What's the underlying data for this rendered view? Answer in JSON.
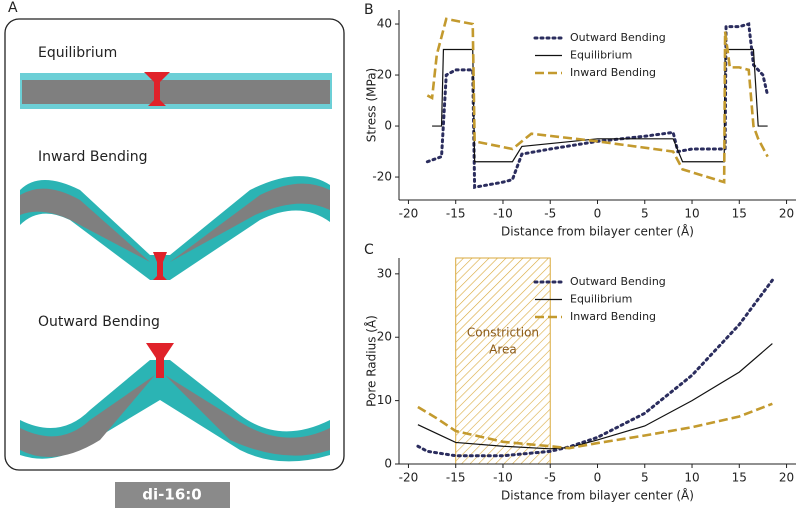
{
  "panel_a": {
    "label": "A",
    "items": [
      "Equilibrium",
      "Inward Bending",
      "Outward Bending"
    ],
    "badge": "di-16:0"
  },
  "chart_data": [
    {
      "type": "line",
      "panel": "B",
      "xlabel": "Distance from bilayer center (Å)",
      "ylabel": "Stress (MPa)",
      "xlim": [
        -21,
        21
      ],
      "ylim": [
        -29,
        45.5
      ],
      "xticks": [
        -20,
        -15,
        -10,
        -5,
        0,
        5,
        10,
        15,
        20
      ],
      "yticks": [
        -20,
        0,
        20,
        40
      ],
      "series": [
        {
          "name": "Outward Bending",
          "color": "#2b2d5e",
          "style": "dotted",
          "x": [
            -18,
            -16.5,
            -16,
            -15,
            -13.2,
            -13,
            -10,
            -9,
            -8,
            -5,
            0,
            5,
            8,
            8.5,
            10,
            13.5,
            13.6,
            15,
            16,
            16.5,
            17.5,
            18
          ],
          "values": [
            -14,
            -12,
            20,
            22,
            22,
            -24,
            -22,
            -21,
            -11,
            -9,
            -6,
            -4,
            -2.5,
            -10,
            -9,
            -9,
            39,
            39,
            40,
            24,
            20,
            12
          ]
        },
        {
          "name": "Equilibrium",
          "color": "#111111",
          "style": "solid",
          "x": [
            -17.5,
            -16.5,
            -16.3,
            -13.2,
            -13,
            -9,
            -8,
            0,
            8,
            9,
            13.4,
            13.5,
            16.5,
            17,
            18
          ],
          "values": [
            0,
            0,
            30,
            30,
            -14,
            -14,
            -8,
            -5,
            -5,
            -14,
            -14,
            30,
            30,
            0,
            0
          ]
        },
        {
          "name": "Inward Bending",
          "color": "#c39a2e",
          "style": "dashed",
          "x": [
            -18,
            -17.5,
            -17,
            -16,
            -13.2,
            -13,
            -9,
            -7,
            0,
            8,
            9,
            13.4,
            13.5,
            14,
            15,
            16,
            16.5,
            17,
            18
          ],
          "values": [
            12,
            11,
            28,
            42,
            40,
            -6,
            -9,
            -3,
            -6,
            -10,
            -17,
            -22,
            37,
            23,
            23,
            22,
            0,
            -5,
            -12
          ]
        }
      ]
    },
    {
      "type": "line",
      "panel": "C",
      "xlabel": "Distance from bilayer center (Å)",
      "ylabel": "Pore Radius (Å)",
      "xlim": [
        -21,
        21
      ],
      "ylim": [
        0,
        32.5
      ],
      "xticks": [
        -20,
        -15,
        -10,
        -5,
        0,
        5,
        10,
        15,
        20
      ],
      "yticks": [
        0,
        10,
        20,
        30
      ],
      "shade": {
        "range": [
          -15,
          -5
        ],
        "lines": [
          "Constriction",
          "Area"
        ],
        "color": "#d9a93c"
      },
      "series": [
        {
          "name": "Outward Bending",
          "color": "#2b2d5e",
          "style": "dotted",
          "x": [
            -19,
            -18,
            -15,
            -10,
            -5,
            -3,
            0,
            5,
            10,
            15,
            18.5
          ],
          "values": [
            2.8,
            2,
            1.3,
            1.3,
            2,
            2.7,
            4.2,
            8,
            14,
            22,
            29
          ]
        },
        {
          "name": "Equilibrium",
          "color": "#111111",
          "style": "solid",
          "x": [
            -19,
            -17,
            -15,
            -10,
            -5,
            -3,
            0,
            5,
            10,
            15,
            18.5
          ],
          "values": [
            6.2,
            4.8,
            3.4,
            2.8,
            2.4,
            2.6,
            3.8,
            6,
            10,
            14.5,
            19
          ]
        },
        {
          "name": "Inward Bending",
          "color": "#c39a2e",
          "style": "dashed",
          "x": [
            -19,
            -17,
            -15,
            -10,
            -5,
            -3,
            0,
            5,
            10,
            15,
            18.5
          ],
          "values": [
            9,
            7.2,
            5.2,
            3.5,
            2.8,
            2.5,
            3.3,
            4.5,
            5.8,
            7.5,
            9.5
          ]
        }
      ]
    }
  ]
}
